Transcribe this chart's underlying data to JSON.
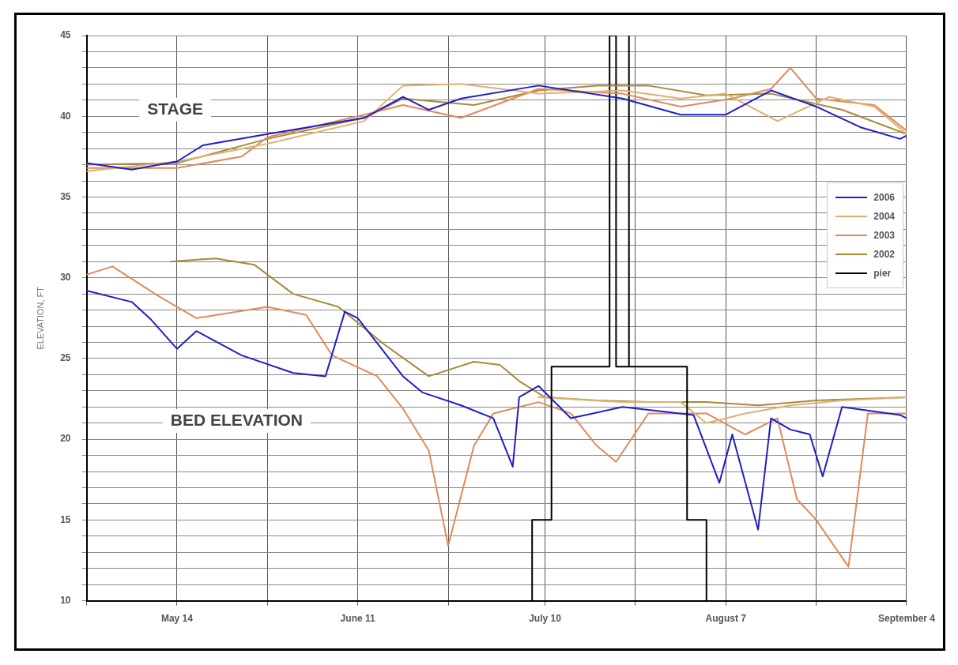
{
  "chart_data": {
    "type": "line",
    "ylabel": "ELEVATION, FT",
    "xlim": [
      "--04-30",
      "--09-04"
    ],
    "xticks": [
      {
        "value": "--04-30",
        "label": null
      },
      {
        "value": "--05-14",
        "label": "May 14"
      },
      {
        "value": "--05-28",
        "label": null
      },
      {
        "value": "--06-11",
        "label": "June 11"
      },
      {
        "value": "--06-25",
        "label": null
      },
      {
        "value": "--07-10",
        "label": "July 10"
      },
      {
        "value": "--07-24",
        "label": null
      },
      {
        "value": "--08-07",
        "label": "August 7"
      },
      {
        "value": "--08-21",
        "label": null
      },
      {
        "value": "--09-04",
        "label": "September 4"
      }
    ],
    "ylim": [
      10,
      45
    ],
    "yticks": [
      10,
      {
        "value": 11,
        "label": null
      },
      {
        "value": 12,
        "label": null
      },
      {
        "value": 13,
        "label": null
      },
      {
        "value": 14,
        "label": null
      },
      15,
      {
        "value": 16,
        "label": null
      },
      {
        "value": 17,
        "label": null
      },
      {
        "value": 18,
        "label": null
      },
      {
        "value": 19,
        "label": null
      },
      20,
      {
        "value": 21,
        "label": null
      },
      {
        "value": 22,
        "label": null
      },
      {
        "value": 23,
        "label": null
      },
      {
        "value": 24,
        "label": null
      },
      25,
      {
        "value": 26,
        "label": null
      },
      {
        "value": 27,
        "label": null
      },
      {
        "value": 28,
        "label": null
      },
      {
        "value": 29,
        "label": null
      },
      30,
      {
        "value": 31,
        "label": null
      },
      {
        "value": 32,
        "label": null
      },
      {
        "value": 33,
        "label": null
      },
      {
        "value": 34,
        "label": null
      },
      35,
      {
        "value": 36,
        "label": null
      },
      {
        "value": 37,
        "label": null
      },
      {
        "value": 38,
        "label": null
      },
      {
        "value": 39,
        "label": null
      },
      40,
      {
        "value": 41,
        "label": null
      },
      {
        "value": 42,
        "label": null
      },
      {
        "value": 43,
        "label": null
      },
      {
        "value": 44,
        "label": null
      },
      45
    ],
    "grid": true,
    "legend": "right",
    "marker": "none",
    "annotations": [
      "STAGE",
      "BED ELEVATION"
    ],
    "series": [
      {
        "name": "2006",
        "color": "#1f1fc8",
        "x": [
          "--04-30",
          "--05-07",
          "--05-14",
          "--05-18",
          "--05-28",
          "--06-12",
          "--06-18",
          "--06-22",
          "--06-27",
          "--07-09",
          "--07-22",
          "--07-31",
          "--08-07",
          "--08-14",
          "--08-21",
          "--08-28",
          "--09-03",
          "--09-04"
        ],
        "values": [
          37.1,
          36.7,
          37.2,
          38.2,
          38.9,
          39.9,
          41.2,
          40.4,
          41.1,
          41.9,
          41.1,
          40.1,
          40.1,
          41.6,
          40.6,
          39.3,
          38.6,
          38.8
        ]
      },
      {
        "name": "2004",
        "color": "#e0b070",
        "x": [
          "--04-30",
          "--05-14",
          "--05-28",
          "--06-12",
          "--06-18",
          "--06-27",
          "--07-09",
          "--07-22",
          "--07-31",
          "--08-07",
          "--08-15",
          "--08-23",
          "--08-30",
          "--09-04"
        ],
        "values": [
          36.6,
          37.2,
          38.3,
          39.7,
          41.9,
          42.0,
          41.4,
          41.6,
          41.1,
          41.4,
          39.7,
          41.2,
          40.6,
          38.9
        ]
      },
      {
        "name": "2003",
        "color": "#e08a5a",
        "x": [
          "--04-30",
          "--05-14",
          "--05-24",
          "--05-28",
          "--06-12",
          "--06-18",
          "--06-27",
          "--07-09",
          "--07-22",
          "--07-31",
          "--08-08",
          "--08-14",
          "--08-17",
          "--08-21",
          "--08-30",
          "--09-04"
        ],
        "values": [
          36.8,
          36.8,
          37.5,
          38.7,
          40.1,
          40.7,
          39.9,
          41.7,
          41.4,
          40.6,
          41.1,
          41.7,
          43.0,
          41.1,
          40.7,
          39.1
        ]
      },
      {
        "name": "2002",
        "color": "#a88a3a",
        "x": [
          "--04-30",
          "--05-14",
          "--05-28",
          "--06-12",
          "--06-18",
          "--06-29",
          "--07-09",
          "--07-18",
          "--07-26",
          "--08-04",
          "--08-14",
          "--08-25",
          "--09-04"
        ],
        "values": [
          37.0,
          37.1,
          38.6,
          39.9,
          41.1,
          40.7,
          41.6,
          41.9,
          41.9,
          41.3,
          41.4,
          40.4,
          38.9
        ]
      },
      {
        "name": "pier",
        "color": "#000000",
        "x": [
          "--07-08",
          "--07-08",
          "--07-11",
          "--07-11",
          "--07-20",
          "--07-20",
          "--07-21",
          "--07-21",
          "--07-23",
          "--07-23",
          "--07-23",
          "--08-01",
          "--08-01",
          "--08-04",
          "--08-04"
        ],
        "values": [
          10,
          15,
          15,
          24.5,
          24.5,
          45,
          45,
          24.5,
          24.5,
          45,
          24.5,
          24.5,
          15,
          15,
          10
        ]
      },
      {
        "color": "#1f1fc8",
        "x": [
          "--04-30",
          "--05-07",
          "--05-10",
          "--05-14",
          "--05-17",
          "--05-24",
          "--06-01",
          "--06-06",
          "--06-09",
          "--06-11",
          "--06-18",
          "--06-21",
          "--06-27",
          "--07-02",
          "--07-05",
          "--07-06",
          "--07-09",
          "--07-14",
          "--07-22",
          "--08-02",
          "--08-06",
          "--08-08",
          "--08-12",
          "--08-14",
          "--08-17",
          "--08-20",
          "--08-22",
          "--08-25",
          "--09-03",
          "--09-04"
        ],
        "values": [
          29.2,
          28.5,
          27.4,
          25.6,
          26.7,
          25.2,
          24.1,
          23.9,
          27.9,
          27.5,
          23.9,
          22.9,
          22.1,
          21.3,
          18.3,
          22.6,
          23.3,
          21.3,
          22.0,
          21.5,
          17.3,
          20.3,
          14.4,
          21.3,
          20.6,
          20.3,
          17.7,
          22.0,
          21.5,
          21.3
        ]
      },
      {
        "color": "#e0b070",
        "x": [
          "--07-09",
          "--07-22",
          "--07-31",
          "--08-04",
          "--08-10",
          "--08-17",
          "--08-25",
          "--09-04"
        ],
        "values": [
          22.6,
          22.3,
          22.3,
          21.0,
          21.6,
          22.1,
          22.4,
          22.6
        ]
      },
      {
        "color": "#e08a5a",
        "x": [
          "--04-30",
          "--05-04",
          "--05-11",
          "--05-17",
          "--05-28",
          "--06-03",
          "--06-07",
          "--06-14",
          "--06-18",
          "--06-22",
          "--06-25",
          "--06-29",
          "--07-02",
          "--07-09",
          "--07-14",
          "--07-18",
          "--07-21",
          "--07-26",
          "--08-04",
          "--08-10",
          "--08-15",
          "--08-18",
          "--08-21",
          "--08-26",
          "--08-29",
          "--09-04"
        ],
        "values": [
          30.2,
          30.7,
          28.9,
          27.5,
          28.2,
          27.7,
          25.2,
          23.9,
          21.9,
          19.3,
          13.4,
          19.6,
          21.6,
          22.3,
          21.6,
          19.6,
          18.6,
          21.6,
          21.6,
          20.3,
          21.3,
          16.3,
          15.0,
          12.1,
          21.6,
          21.6
        ]
      },
      {
        "color": "#a88a3a",
        "x": [
          "--05-13",
          "--05-20",
          "--05-26",
          "--06-01",
          "--06-08",
          "--06-15",
          "--06-22",
          "--06-29",
          "--07-03",
          "--07-06",
          "--07-10",
          "--07-18",
          "--07-26",
          "--08-04",
          "--08-12",
          "--08-21",
          "--09-04"
        ],
        "values": [
          31.0,
          31.2,
          30.8,
          29.0,
          28.2,
          25.9,
          23.9,
          24.8,
          24.6,
          23.6,
          22.6,
          22.4,
          22.3,
          22.3,
          22.1,
          22.4,
          22.6
        ]
      }
    ]
  }
}
